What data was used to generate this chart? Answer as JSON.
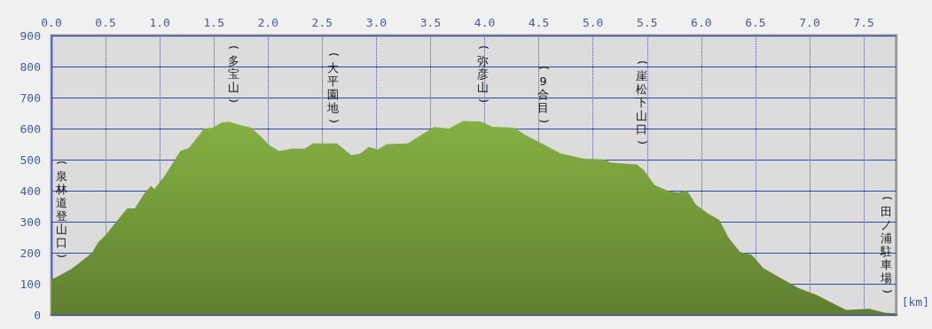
{
  "chart_data": {
    "type": "area",
    "xlabel": "[km]",
    "x": [
      0,
      0.035,
      0.185,
      0.27,
      0.375,
      0.43,
      0.5,
      0.61,
      0.7,
      0.77,
      0.865,
      0.92,
      0.95,
      1.055,
      1.19,
      1.27,
      1.41,
      1.49,
      1.57,
      1.64,
      1.735,
      1.845,
      1.93,
      2.01,
      2.1,
      2.225,
      2.335,
      2.415,
      2.635,
      2.77,
      2.85,
      2.93,
      3.015,
      3.095,
      3.29,
      3.42,
      3.53,
      3.67,
      3.8,
      3.964,
      4.07,
      4.18,
      4.277,
      4.372,
      4.535,
      4.7,
      4.916,
      5.106,
      5.16,
      5.405,
      5.473,
      5.568,
      5.705,
      5.786,
      5.868,
      5.95,
      6.058,
      6.167,
      6.248,
      6.357,
      6.466,
      6.575,
      6.765,
      6.9,
      7.064,
      7.227,
      7.336,
      7.553,
      7.69,
      7.8
    ],
    "series": [
      {
        "color": "#84b043",
        "values": [
          116,
          119,
          148,
          171,
          200,
          233,
          257,
          305,
          343,
          343,
          395,
          416,
          405,
          452,
          528,
          538,
          600,
          603,
          619,
          622,
          612,
          603,
          576,
          547,
          528,
          536,
          535,
          552,
          552,
          514,
          519,
          541,
          533,
          550,
          552,
          581,
          605,
          600,
          624,
          623,
          606,
          604,
          602,
          580,
          551,
          520,
          503,
          501,
          491,
          484,
          465,
          418,
          398,
          394,
          401,
          355,
          327,
          306,
          250,
          203,
          193,
          150,
          112,
          86,
          64,
          35,
          16,
          19,
          7,
          4
        ]
      }
    ],
    "xlim": [
      0,
      7.8
    ],
    "xticks": [
      {
        "value": 0,
        "label": "0.0"
      },
      0.5,
      {
        "value": 1,
        "label": "1.0"
      },
      1.5,
      {
        "value": 2,
        "label": "2.0"
      },
      2.5,
      {
        "value": 3,
        "label": "3.0"
      },
      3.5,
      {
        "value": 4,
        "label": "4.0"
      },
      4.5,
      {
        "value": 5,
        "label": "5.0"
      },
      5.5,
      {
        "value": 6,
        "label": "6.0"
      },
      6.5,
      {
        "value": 7,
        "label": "7.0"
      },
      7.5
    ],
    "ylim": [
      0,
      900
    ],
    "yticks": [
      0,
      100,
      200,
      300,
      400,
      500,
      600,
      700,
      800,
      900
    ],
    "grid": true,
    "marker": "none",
    "annotations": [
      {
        "text": "(泉林道登山口)",
        "x": 0,
        "y": 116
      },
      {
        "text": "(多宝山)",
        "x": 1.68,
        "y": 622
      },
      {
        "text": "(大平園地)",
        "x": 2.6,
        "y": 552
      },
      {
        "text": "(弥彦山)",
        "x": 3.986,
        "y": 623
      },
      {
        "text": "(9合目)",
        "x": 4.54,
        "y": 551
      },
      {
        "text": "(崖松下山口)",
        "x": 5.45,
        "y": 484
      },
      {
        "text": "(田ノ浦駐車場)",
        "x": 7.8,
        "y": 4
      }
    ]
  }
}
